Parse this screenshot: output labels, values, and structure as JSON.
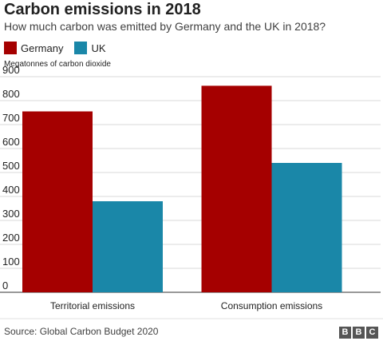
{
  "title": "Carbon emissions in 2018",
  "subtitle": "How much carbon was emitted by Germany and the UK in 2018?",
  "source": "Source: Global Carbon Budget 2020",
  "logo_letters": [
    "B",
    "B",
    "C"
  ],
  "chart_data": {
    "type": "bar",
    "categories": [
      "Territorial emissions",
      "Consumption emissions"
    ],
    "series": [
      {
        "name": "Germany",
        "values": [
          755,
          862
        ],
        "color": "#a50000"
      },
      {
        "name": "UK",
        "values": [
          380,
          540
        ],
        "color": "#1a87a8"
      }
    ],
    "ylabel": "Megatonnes of carbon dioxide",
    "ylim": [
      0,
      900
    ],
    "yticks": [
      0,
      100,
      200,
      300,
      400,
      500,
      600,
      700,
      800,
      900
    ],
    "grid": true,
    "legend_position": "top-left"
  }
}
